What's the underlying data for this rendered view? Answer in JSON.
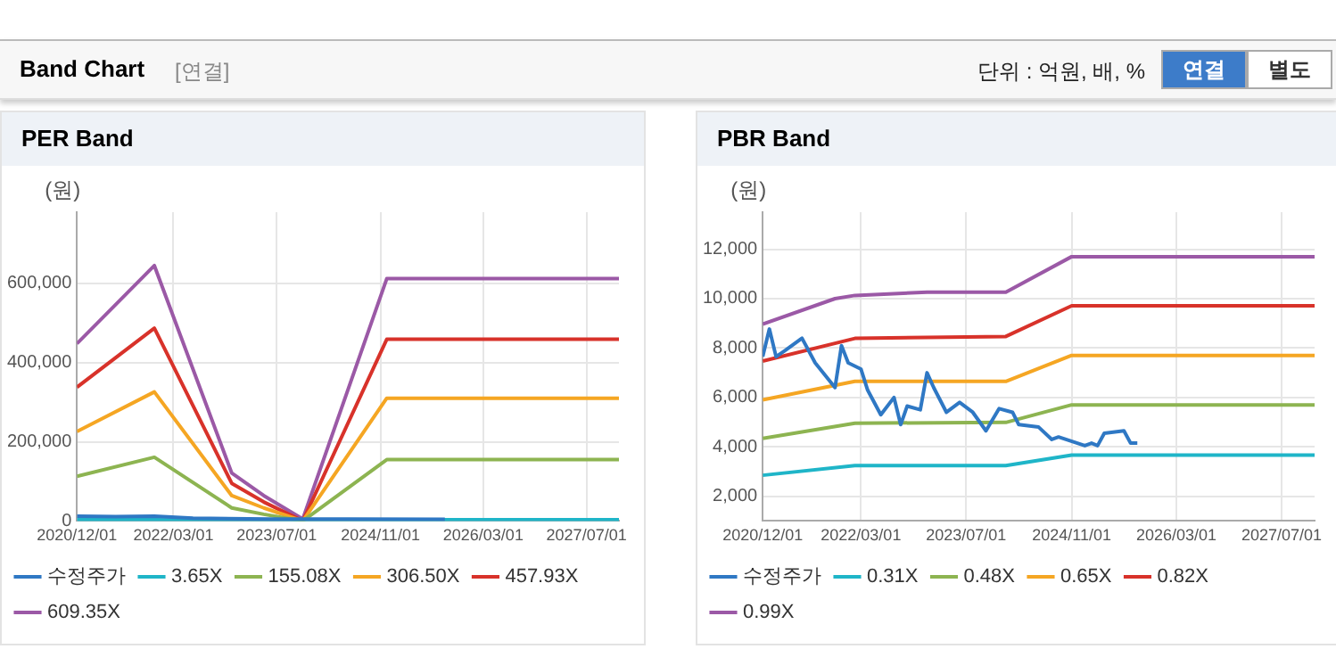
{
  "chart_data": [
    {
      "type": "other",
      "title": "Band Chart",
      "annotations": [
        "[연결]",
        "단위 : 억원, 배, %",
        "연결",
        "별도"
      ]
    },
    {
      "type": "line",
      "title": "PER Band",
      "ylabel": "(원)",
      "xlim": [
        "2020-12-01",
        "2027-12-01"
      ],
      "xticks": [
        {
          "value": "2020-12-01",
          "label": "2020/12/01"
        },
        {
          "value": "2022-03-01",
          "label": "2022/03/01"
        },
        {
          "value": "2023-07-01",
          "label": "2023/07/01"
        },
        {
          "value": "2024-11-01",
          "label": "2024/11/01"
        },
        {
          "value": "2026-03-01",
          "label": "2026/03/01"
        },
        {
          "value": "2027-07-01",
          "label": "2027/07/01"
        }
      ],
      "ylim": [
        0,
        780000
      ],
      "yticks": [
        0,
        {
          "value": 200000,
          "label": "200,000"
        },
        {
          "value": 400000,
          "label": "400,000"
        },
        {
          "value": 600000,
          "label": "600,000"
        }
      ],
      "grid": true,
      "legend": "bottom",
      "series": [
        {
          "name": "수정주가",
          "color": "#2f78c4",
          "x": [
            "2020-12-01",
            "2021-06-01",
            "2021-12-01",
            "2022-06-01",
            "2023-06-01",
            "2024-06-01",
            "2025-09-01"
          ],
          "values": [
            12000,
            11000,
            12000,
            7000,
            5000,
            5000,
            4000
          ]
        },
        {
          "name": "3.65X",
          "color": "#1fb5c8",
          "x": [
            "2020-12-01",
            "2021-12-01",
            "2022-12-01",
            "2023-11-01",
            "2024-12-01",
            "2027-12-01"
          ],
          "values": [
            3000,
            3000,
            2000,
            0,
            3000,
            3000
          ]
        },
        {
          "name": "155.08X",
          "color": "#8db451",
          "x": [
            "2020-12-01",
            "2021-12-01",
            "2022-12-01",
            "2023-05-01",
            "2023-11-01",
            "2024-12-01",
            "2027-12-01"
          ],
          "values": [
            113000,
            161000,
            33000,
            17000,
            0,
            155000,
            155000
          ]
        },
        {
          "name": "306.50X",
          "color": "#f5a623",
          "x": [
            "2020-12-01",
            "2021-12-01",
            "2022-12-01",
            "2023-05-01",
            "2023-11-01",
            "2024-12-01",
            "2027-12-01"
          ],
          "values": [
            226000,
            326000,
            64000,
            33000,
            0,
            310000,
            310000
          ]
        },
        {
          "name": "457.93X",
          "color": "#d8322a",
          "x": [
            "2020-12-01",
            "2021-12-01",
            "2022-12-01",
            "2023-05-01",
            "2023-11-01",
            "2024-12-01",
            "2027-12-01"
          ],
          "values": [
            338000,
            487000,
            95000,
            48000,
            0,
            459000,
            459000
          ]
        },
        {
          "name": "609.35X",
          "color": "#9b59a6",
          "x": [
            "2020-12-01",
            "2021-12-01",
            "2022-12-01",
            "2023-05-01",
            "2023-11-01",
            "2024-12-01",
            "2027-12-01"
          ],
          "values": [
            448000,
            645000,
            121000,
            64000,
            5000,
            612000,
            612000
          ]
        }
      ]
    },
    {
      "type": "line",
      "title": "PBR Band",
      "ylabel": "(원)",
      "xlim": [
        "2020-12-01",
        "2027-12-01"
      ],
      "xticks": [
        {
          "value": "2020-12-01",
          "label": "2020/12/01"
        },
        {
          "value": "2022-03-01",
          "label": "2022/03/01"
        },
        {
          "value": "2023-07-01",
          "label": "2023/07/01"
        },
        {
          "value": "2024-11-01",
          "label": "2024/11/01"
        },
        {
          "value": "2026-03-01",
          "label": "2026/03/01"
        },
        {
          "value": "2027-07-01",
          "label": "2027/07/01"
        }
      ],
      "ylim": [
        1000,
        13500
      ],
      "yticks": [
        {
          "value": 2000,
          "label": "2,000"
        },
        {
          "value": 4000,
          "label": "4,000"
        },
        {
          "value": 6000,
          "label": "6,000"
        },
        {
          "value": 8000,
          "label": "8,000"
        },
        {
          "value": 10000,
          "label": "10,000"
        },
        {
          "value": 12000,
          "label": "12,000"
        }
      ],
      "grid": true,
      "legend": "bottom",
      "series": [
        {
          "name": "수정주가",
          "color": "#2f78c4",
          "x": [
            "2020-12-01",
            "2021-01-01",
            "2021-02-01",
            "2021-03-15",
            "2021-06-01",
            "2021-08-01",
            "2021-11-01",
            "2021-12-01",
            "2022-01-01",
            "2022-03-01",
            "2022-04-01",
            "2022-06-01",
            "2022-08-01",
            "2022-09-01",
            "2022-10-01",
            "2022-12-01",
            "2023-01-01",
            "2023-02-01",
            "2023-04-01",
            "2023-06-01",
            "2023-08-01",
            "2023-10-01",
            "2023-12-01",
            "2024-02-01",
            "2024-03-01",
            "2024-06-01",
            "2024-08-01",
            "2024-09-01",
            "2025-01-01",
            "2025-02-01",
            "2025-03-01",
            "2025-04-01",
            "2025-07-01",
            "2025-08-01",
            "2025-09-01"
          ],
          "values": [
            7650,
            8770,
            7650,
            7900,
            8400,
            7400,
            6400,
            8100,
            7400,
            7150,
            6300,
            5300,
            6000,
            4900,
            5650,
            5500,
            7000,
            6400,
            5400,
            5800,
            5400,
            4650,
            5550,
            5400,
            4900,
            4800,
            4300,
            4400,
            4050,
            4150,
            4050,
            4550,
            4650,
            4150,
            4150
          ]
        },
        {
          "name": "0.31X",
          "color": "#1fb5c8",
          "x": [
            "2020-12-01",
            "2022-02-01",
            "2024-01-01",
            "2024-11-01",
            "2027-12-01"
          ],
          "values": [
            2850,
            3240,
            3240,
            3670,
            3670
          ]
        },
        {
          "name": "0.48X",
          "color": "#8db451",
          "x": [
            "2020-12-01",
            "2022-02-01",
            "2024-01-01",
            "2024-11-01",
            "2027-12-01"
          ],
          "values": [
            4340,
            4960,
            4990,
            5700,
            5700
          ]
        },
        {
          "name": "0.65X",
          "color": "#f5a623",
          "x": [
            "2020-12-01",
            "2022-02-01",
            "2024-01-01",
            "2024-11-01",
            "2027-12-01"
          ],
          "values": [
            5900,
            6650,
            6650,
            7700,
            7700
          ]
        },
        {
          "name": "0.82X",
          "color": "#d8322a",
          "x": [
            "2020-12-01",
            "2022-02-01",
            "2024-01-01",
            "2024-11-01",
            "2027-12-01"
          ],
          "values": [
            7470,
            8390,
            8470,
            9710,
            9710
          ]
        },
        {
          "name": "0.99X",
          "color": "#9b59a6",
          "x": [
            "2020-12-01",
            "2021-11-01",
            "2022-02-01",
            "2023-01-01",
            "2024-01-01",
            "2024-11-01",
            "2027-12-01"
          ],
          "values": [
            8970,
            10000,
            10130,
            10260,
            10260,
            11700,
            11700
          ]
        }
      ]
    }
  ]
}
